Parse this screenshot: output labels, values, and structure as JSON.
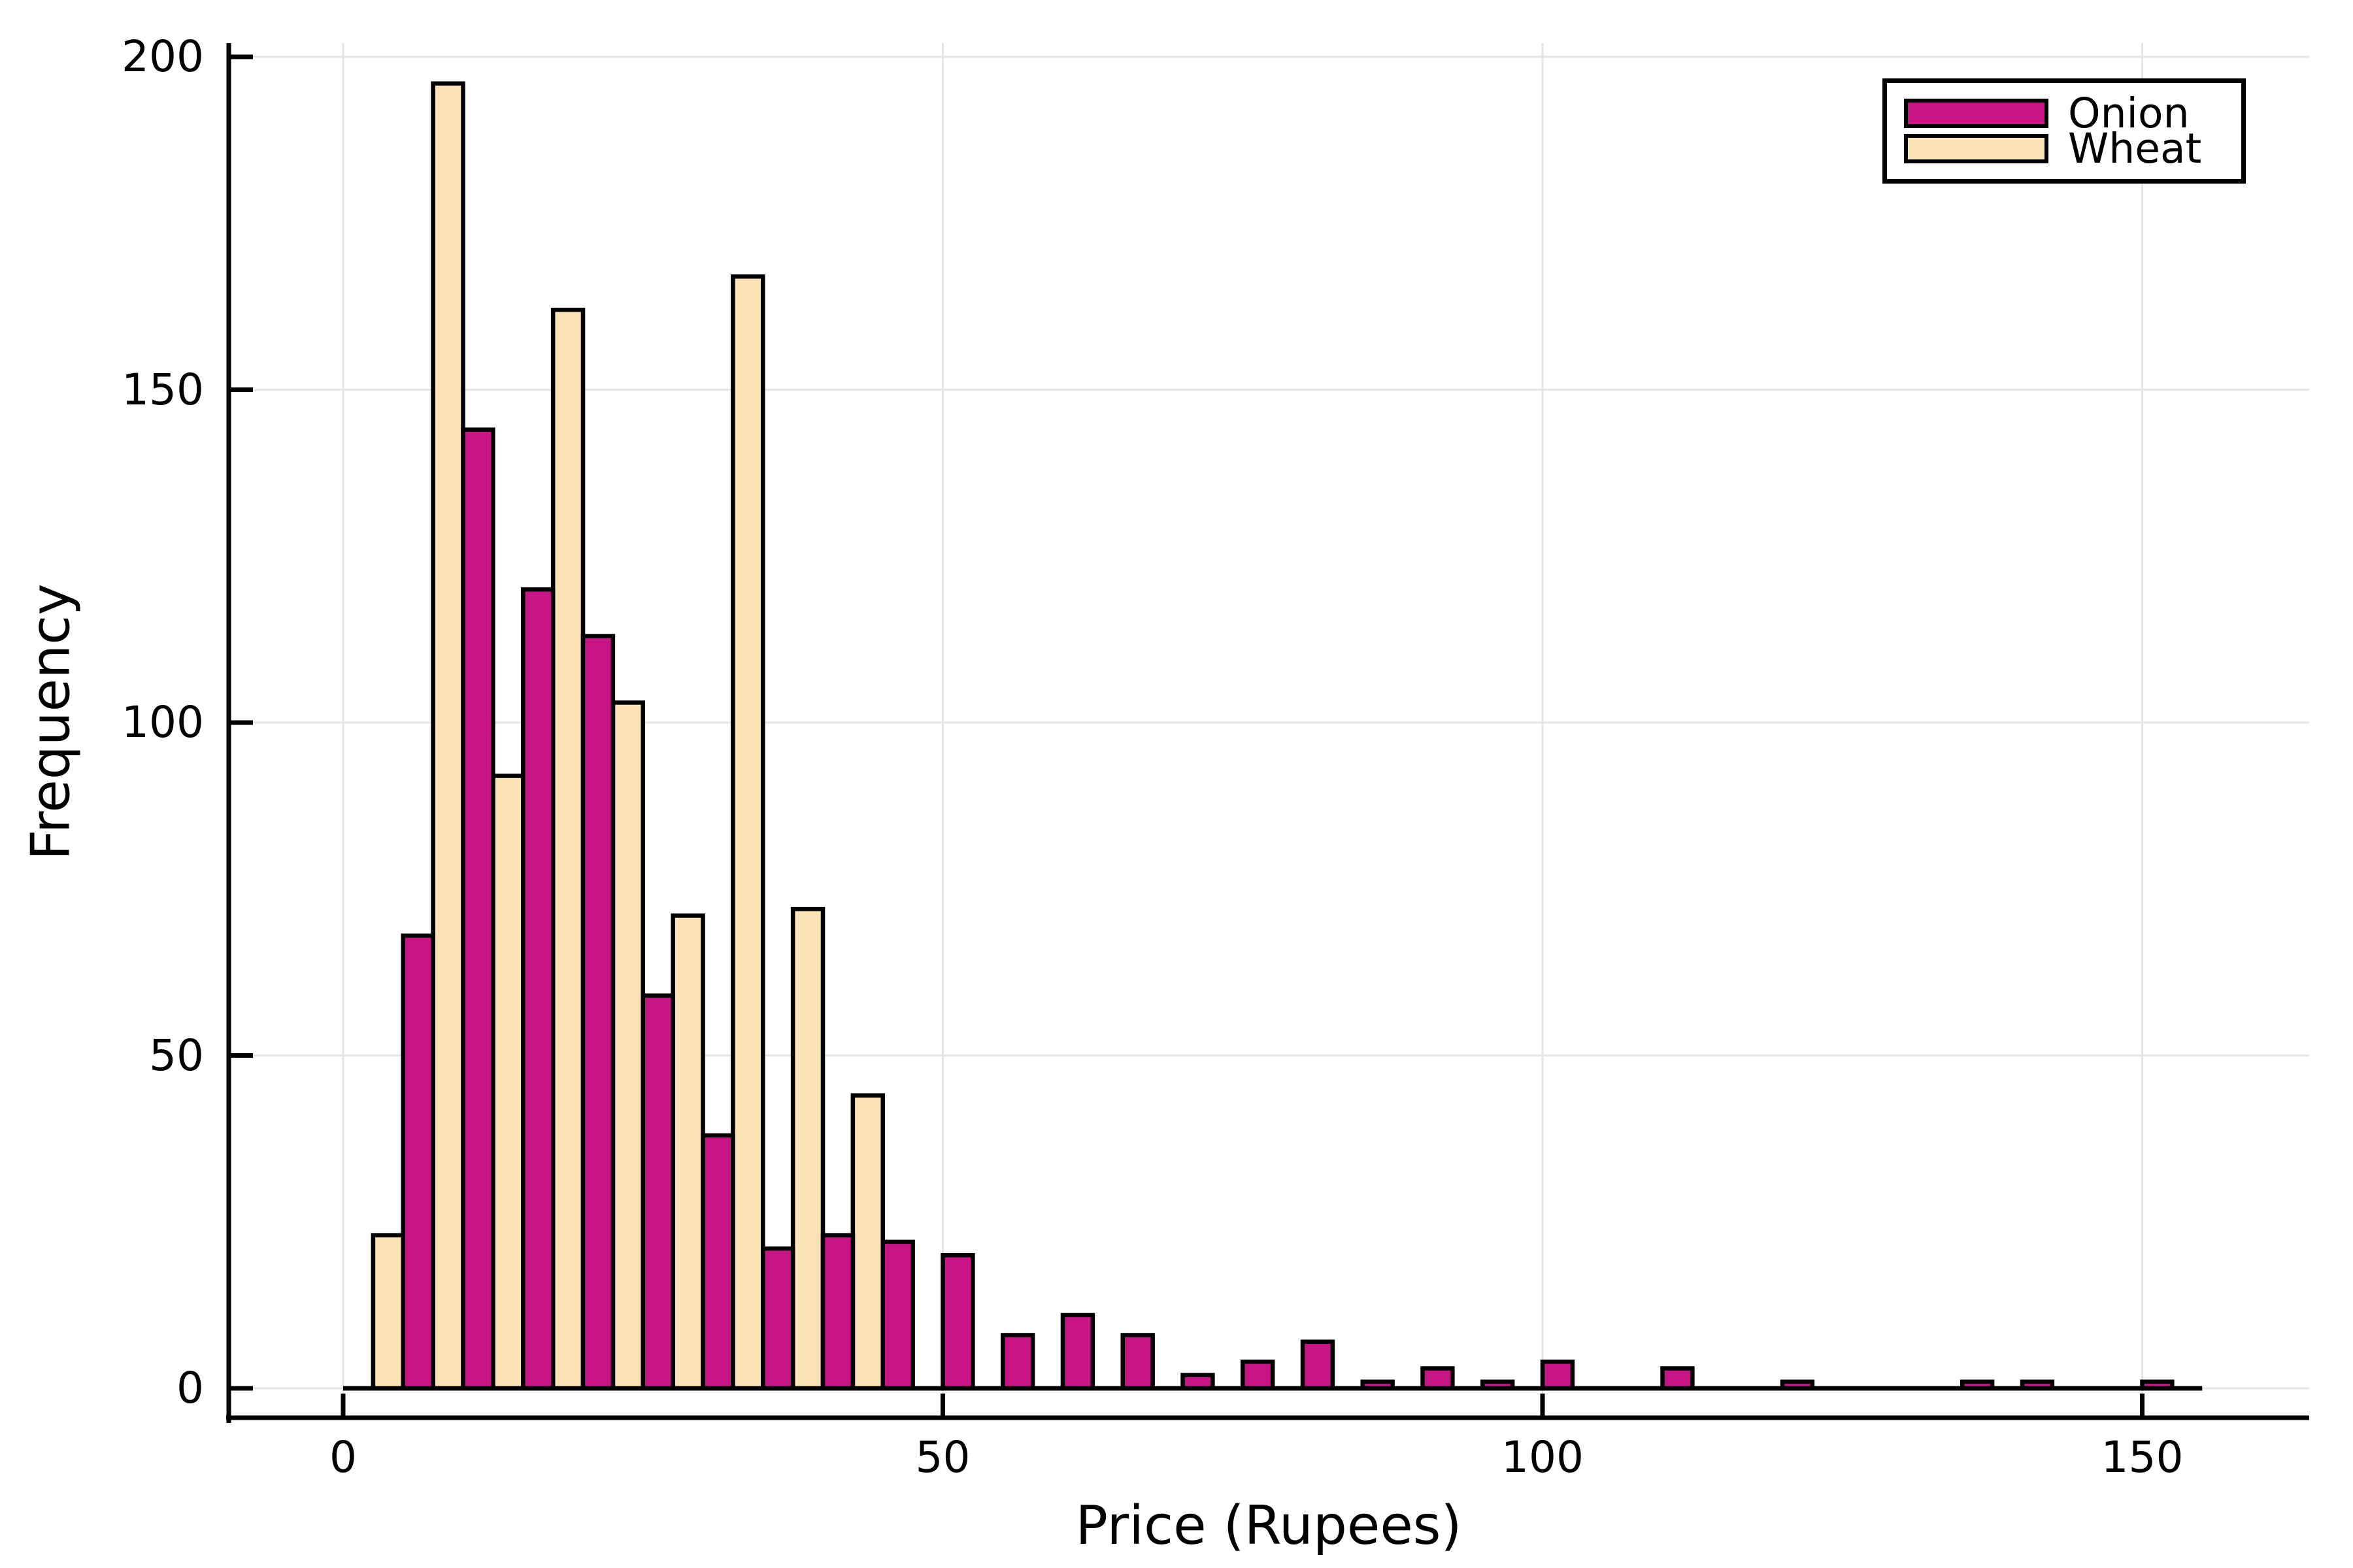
{
  "figure": {
    "xlabel": "Price (Rupees)",
    "ylabel": "Frequency",
    "background": "#ffffff",
    "text_color": "#000000",
    "legend": [
      {
        "label": "Onion",
        "color": "#C71585"
      },
      {
        "label": "Wheat",
        "color": "#FCE3B6"
      }
    ]
  },
  "chart_data": {
    "type": "bar",
    "subtype": "grouped-histogram",
    "title": "",
    "xlabel": "Price (Rupees)",
    "ylabel": "Frequency",
    "x_ticks": [
      0,
      50,
      100,
      150
    ],
    "y_ticks": [
      0,
      50,
      100,
      150,
      200
    ],
    "xlim": [
      -9.5,
      164
    ],
    "ylim": [
      -4.5,
      202
    ],
    "grid": true,
    "legend_position": "top-right",
    "bin_width": 5,
    "bar_width": 2.5,
    "baseline_span": [
      0,
      155
    ],
    "axis_color": "#000000",
    "grid_color": "#e5e5e5",
    "series": [
      {
        "name": "Wheat",
        "color": "#FCE3B6",
        "edge_color": "#000000",
        "offset": -2.5,
        "bin_centers": [
          5,
          10,
          15,
          20,
          25,
          30,
          35,
          40,
          45
        ],
        "values": [
          23,
          196,
          92,
          162,
          103,
          71,
          167,
          72,
          44
        ]
      },
      {
        "name": "Onion",
        "color": "#C71585",
        "edge_color": "#000000",
        "offset": 0,
        "bin_centers": [
          5,
          10,
          15,
          20,
          25,
          30,
          35,
          40,
          45,
          50,
          55,
          60,
          65,
          70,
          75,
          80,
          85,
          90,
          95,
          100,
          110,
          120,
          135,
          140,
          150
        ],
        "values": [
          68,
          144,
          120,
          113,
          59,
          38,
          21,
          23,
          22,
          20,
          8,
          11,
          8,
          2,
          4,
          7,
          1,
          3,
          1,
          4,
          3,
          1,
          1,
          1,
          1
        ]
      }
    ]
  }
}
